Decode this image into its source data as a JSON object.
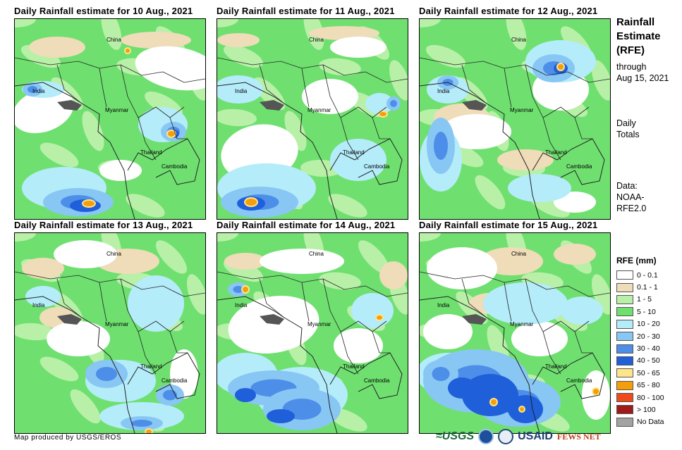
{
  "panels": [
    {
      "title": "Daily Rainfall estimate for 10 Aug., 2021"
    },
    {
      "title": "Daily Rainfall estimate for 11 Aug., 2021"
    },
    {
      "title": "Daily Rainfall estimate for 12 Aug., 2021"
    },
    {
      "title": "Daily Rainfall estimate for 13 Aug., 2021"
    },
    {
      "title": "Daily Rainfall estimate for 14 Aug., 2021"
    },
    {
      "title": "Daily Rainfall estimate for 15 Aug., 2021"
    }
  ],
  "map_labels": {
    "china": "China",
    "india": "India",
    "myanmar": "Myanmar",
    "thailand": "Thailand",
    "cambodia": "Cambodia"
  },
  "sidebar": {
    "title_line1": "Rainfall",
    "title_line2": "Estimate",
    "title_line3": "(RFE)",
    "through_label": "through",
    "through_date": "Aug 15, 2021",
    "totals_line1": "Daily",
    "totals_line2": "Totals",
    "data_label": "Data:",
    "data_source_line1": "NOAA-",
    "data_source_line2": "RFE2.0"
  },
  "legend": {
    "title": "RFE (mm)",
    "items": [
      {
        "label": "0 - 0.1",
        "color": "#ffffff"
      },
      {
        "label": "0.1 - 1",
        "color": "#efdcb8"
      },
      {
        "label": "1 - 5",
        "color": "#b8f0a8"
      },
      {
        "label": "5 - 10",
        "color": "#6fe070"
      },
      {
        "label": "10 - 20",
        "color": "#b4ecfa"
      },
      {
        "label": "20 - 30",
        "color": "#88c6f4"
      },
      {
        "label": "30 - 40",
        "color": "#4d8ee8"
      },
      {
        "label": "40 - 50",
        "color": "#1f5fd9"
      },
      {
        "label": "50 - 65",
        "color": "#fde68a"
      },
      {
        "label": "65 - 80",
        "color": "#f59e0b"
      },
      {
        "label": "80 - 100",
        "color": "#ef4a1c"
      },
      {
        "label": "> 100",
        "color": "#a11a1a"
      },
      {
        "label": "No Data",
        "color": "#a3a3a3"
      }
    ]
  },
  "footer": {
    "credit": "Map produced by USGS/EROS",
    "logo_usgs": "≈USGS",
    "logo_usaid": "USAID",
    "logo_fews": "FEWS NET"
  }
}
